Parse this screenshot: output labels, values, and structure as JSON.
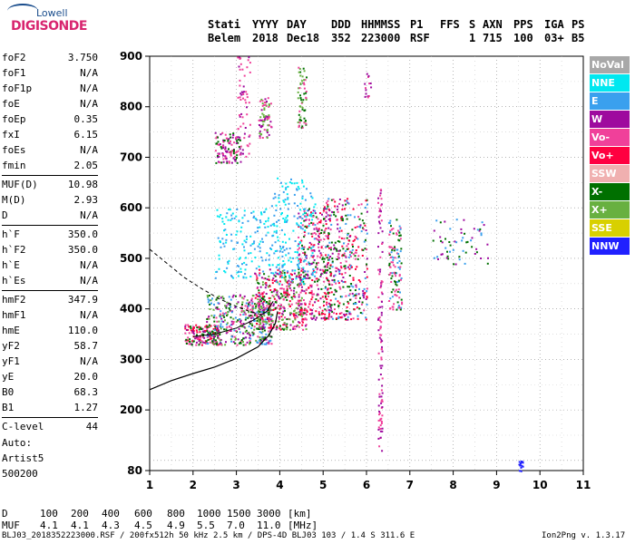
{
  "logo": {
    "top": "Lowell",
    "main": "DIGISONDE"
  },
  "header": {
    "cols": [
      "Stati",
      "YYYY",
      "DAY",
      "DDD",
      "HHMMSS",
      "P1",
      "FFS",
      "S",
      "AXN",
      "PPS",
      "IGA",
      "PS"
    ],
    "vals": [
      "Belem",
      "2018",
      "Dec18",
      "352",
      "223000",
      "RSF",
      "",
      "1",
      "715",
      "100",
      "03+",
      "B5"
    ]
  },
  "params": [
    {
      "k": "foF2",
      "v": "3.750"
    },
    {
      "k": "foF1",
      "v": "N/A"
    },
    {
      "k": "foF1p",
      "v": "N/A"
    },
    {
      "k": "foE",
      "v": "N/A"
    },
    {
      "k": "foEp",
      "v": "0.35"
    },
    {
      "k": "fxI",
      "v": "6.15"
    },
    {
      "k": "foEs",
      "v": "N/A"
    },
    {
      "k": "fmin",
      "v": "2.05"
    },
    {
      "k": "MUF(D)",
      "v": "10.98",
      "sep": true
    },
    {
      "k": "M(D)",
      "v": "2.93"
    },
    {
      "k": "D",
      "v": "N/A"
    },
    {
      "k": "h`F",
      "v": "350.0",
      "sep": true
    },
    {
      "k": "h`F2",
      "v": "350.0"
    },
    {
      "k": "h`E",
      "v": "N/A"
    },
    {
      "k": "h`Es",
      "v": "N/A"
    },
    {
      "k": "hmF2",
      "v": "347.9",
      "sep": true
    },
    {
      "k": "hmF1",
      "v": "N/A"
    },
    {
      "k": "hmE",
      "v": "110.0"
    },
    {
      "k": "yF2",
      "v": "58.7"
    },
    {
      "k": "yF1",
      "v": "N/A"
    },
    {
      "k": "yE",
      "v": "20.0"
    },
    {
      "k": "B0",
      "v": "68.3"
    },
    {
      "k": "B1",
      "v": "1.27"
    },
    {
      "k": "C-level",
      "v": "44",
      "sep": true
    }
  ],
  "autoscale": [
    "Auto:",
    "Artist5",
    "500200"
  ],
  "legend": [
    {
      "label": "NoVal",
      "color": "#a8a8a8"
    },
    {
      "label": "NNE",
      "color": "#00e8f0"
    },
    {
      "label": "E",
      "color": "#3aa0ee"
    },
    {
      "label": "W",
      "color": "#9e0a9e"
    },
    {
      "label": "Vo-",
      "color": "#f0409a"
    },
    {
      "label": "Vo+",
      "color": "#ff0040"
    },
    {
      "label": "SSW",
      "color": "#f0b0b0"
    },
    {
      "label": "X-",
      "color": "#007000"
    },
    {
      "label": "X+",
      "color": "#68b040"
    },
    {
      "label": "SSE",
      "color": "#d8d000"
    },
    {
      "label": "NNW",
      "color": "#2020ff"
    }
  ],
  "footer": {
    "d_label": "D",
    "d_values": [
      "100",
      "200",
      "400",
      "600",
      "800",
      "1000",
      "1500",
      "3000",
      "[km]"
    ],
    "muf_label": "MUF",
    "muf_values": [
      "4.1",
      "4.1",
      "4.3",
      "4.5",
      "4.9",
      "5.5",
      "7.0",
      "11.0",
      "[MHz]"
    ],
    "info": "BLJ03_2018352223000.RSF / 200fx512h 50 kHz 2.5 km / DPS-4D BLJ03 103 / 1.4 S 311.6 E",
    "version": "Ion2Png v. 1.3.17"
  },
  "chart_data": {
    "type": "scatter",
    "xlim": [
      1,
      11
    ],
    "ylim": [
      80,
      900
    ],
    "xticks": [
      1,
      2,
      3,
      4,
      5,
      6,
      7,
      8,
      9,
      10,
      11
    ],
    "yticks": [
      80,
      200,
      300,
      400,
      500,
      600,
      700,
      800,
      900
    ],
    "xlabel": "",
    "ylabel": "",
    "grid": true,
    "clusters": [
      {
        "f": [
          1.8,
          2.6
        ],
        "h": [
          330,
          370
        ],
        "n": 160,
        "colors": [
          "#f0409a",
          "#9e0a9e",
          "#007000",
          "#ff0040"
        ]
      },
      {
        "f": [
          2.3,
          3.8
        ],
        "h": [
          330,
          430
        ],
        "n": 420,
        "colors": [
          "#f0409a",
          "#9e0a9e",
          "#007000",
          "#3aa0ee",
          "#68b040"
        ]
      },
      {
        "f": [
          3.4,
          4.6
        ],
        "h": [
          360,
          480
        ],
        "n": 380,
        "colors": [
          "#f0409a",
          "#9e0a9e",
          "#007000",
          "#ff0040",
          "#68b040"
        ]
      },
      {
        "f": [
          4.4,
          5.2
        ],
        "h": [
          380,
          600
        ],
        "n": 320,
        "colors": [
          "#f0409a",
          "#9e0a9e",
          "#007000",
          "#ff0040"
        ]
      },
      {
        "f": [
          5.0,
          6.0
        ],
        "h": [
          380,
          620
        ],
        "n": 360,
        "colors": [
          "#f0409a",
          "#9e0a9e",
          "#007000",
          "#ff0040",
          "#3aa0ee"
        ]
      },
      {
        "f": [
          2.5,
          3.8
        ],
        "h": [
          460,
          600
        ],
        "n": 150,
        "colors": [
          "#3aa0ee",
          "#00e8f0"
        ]
      },
      {
        "f": [
          3.8,
          4.8
        ],
        "h": [
          450,
          660
        ],
        "n": 200,
        "colors": [
          "#3aa0ee",
          "#00e8f0"
        ]
      },
      {
        "f": [
          2.5,
          3.1
        ],
        "h": [
          690,
          750
        ],
        "n": 110,
        "colors": [
          "#f0409a",
          "#9e0a9e",
          "#007000"
        ]
      },
      {
        "f": [
          3.5,
          3.8
        ],
        "h": [
          740,
          820
        ],
        "n": 70,
        "colors": [
          "#f0409a",
          "#9e0a9e",
          "#68b040"
        ]
      },
      {
        "f": [
          4.4,
          4.6
        ],
        "h": [
          760,
          880
        ],
        "n": 60,
        "colors": [
          "#f0409a",
          "#007000",
          "#68b040"
        ]
      },
      {
        "f": [
          3.0,
          3.3
        ],
        "h": [
          700,
          900
        ],
        "n": 60,
        "colors": [
          "#f0409a",
          "#9e0a9e"
        ]
      },
      {
        "f": [
          6.5,
          6.8
        ],
        "h": [
          400,
          580
        ],
        "n": 120,
        "colors": [
          "#3aa0ee",
          "#f0409a",
          "#007000"
        ]
      },
      {
        "f": [
          6.25,
          6.35
        ],
        "h": [
          120,
          640
        ],
        "n": 110,
        "colors": [
          "#9e0a9e",
          "#f0409a"
        ]
      },
      {
        "f": [
          7.5,
          8.8
        ],
        "h": [
          490,
          580
        ],
        "n": 60,
        "colors": [
          "#3aa0ee",
          "#007000",
          "#9e0a9e"
        ]
      },
      {
        "f": [
          5.9,
          6.1
        ],
        "h": [
          820,
          870
        ],
        "n": 14,
        "colors": [
          "#9e0a9e",
          "#f0409a"
        ]
      },
      {
        "f": [
          9.5,
          9.6
        ],
        "h": [
          80,
          100
        ],
        "n": 14,
        "colors": [
          "#2020ff"
        ]
      }
    ],
    "solid_trace": [
      [
        1,
        240
      ],
      [
        1.5,
        258
      ],
      [
        2,
        272
      ],
      [
        2.5,
        285
      ],
      [
        3,
        302
      ],
      [
        3.5,
        325
      ],
      [
        3.75,
        348
      ],
      [
        3.9,
        372
      ],
      [
        3.95,
        395
      ]
    ],
    "dashed_trace": [
      [
        1,
        518
      ],
      [
        1.4,
        490
      ],
      [
        1.8,
        462
      ],
      [
        2.2,
        440
      ],
      [
        2.6,
        420
      ],
      [
        3,
        405
      ],
      [
        3.3,
        395
      ],
      [
        3.6,
        388
      ]
    ],
    "virtual_trace": [
      [
        2.0,
        345
      ],
      [
        2.5,
        350
      ],
      [
        3.0,
        362
      ],
      [
        3.4,
        378
      ],
      [
        3.7,
        395
      ],
      [
        3.85,
        415
      ]
    ]
  }
}
